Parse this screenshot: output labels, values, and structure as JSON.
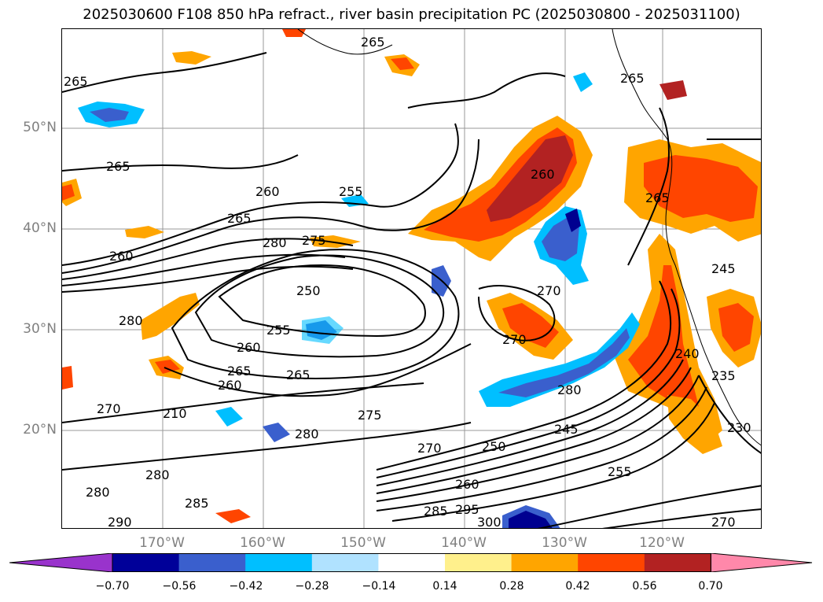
{
  "title": "2025030600 F108 850 hPa refract., river basin precipitation PC (2025030800 - 2025031100)",
  "map": {
    "lat_labels": [
      "50°N",
      "40°N",
      "30°N",
      "20°N"
    ],
    "lon_labels": [
      "170°W",
      "160°W",
      "150°W",
      "140°W",
      "130°W",
      "120°W"
    ],
    "contour_labels": [
      "265",
      "265",
      "265",
      "265",
      "260",
      "255",
      "265",
      "280",
      "275",
      "260",
      "250",
      "255",
      "260",
      "280",
      "265",
      "260",
      "265",
      "270",
      "210",
      "275",
      "280",
      "280",
      "285",
      "290",
      "280",
      "270",
      "250",
      "245",
      "260",
      "255",
      "285",
      "295",
      "300",
      "270",
      "270",
      "270",
      "280",
      "240",
      "235",
      "230",
      "265",
      "245",
      "260"
    ],
    "colors": {
      "orange": "#ffa500",
      "red_orange": "#ff4500",
      "dark_red": "#b22222",
      "yellow": "#fff08c",
      "blue": "#3a5fcd",
      "cyan": "#00bfff",
      "light_blue": "#b0e2ff",
      "navy": "#000090"
    }
  },
  "colorbar": {
    "ticks": [
      "−0.70",
      "−0.56",
      "−0.42",
      "−0.28",
      "−0.14",
      "0.14",
      "0.28",
      "0.42",
      "0.56",
      "0.70"
    ],
    "colors": [
      "#9933cc",
      "#000099",
      "#3a5fcd",
      "#00bfff",
      "#b0e2ff",
      "#ffffff",
      "#fff08c",
      "#ffa500",
      "#ff4500",
      "#b22222",
      "#ff88aa"
    ]
  }
}
